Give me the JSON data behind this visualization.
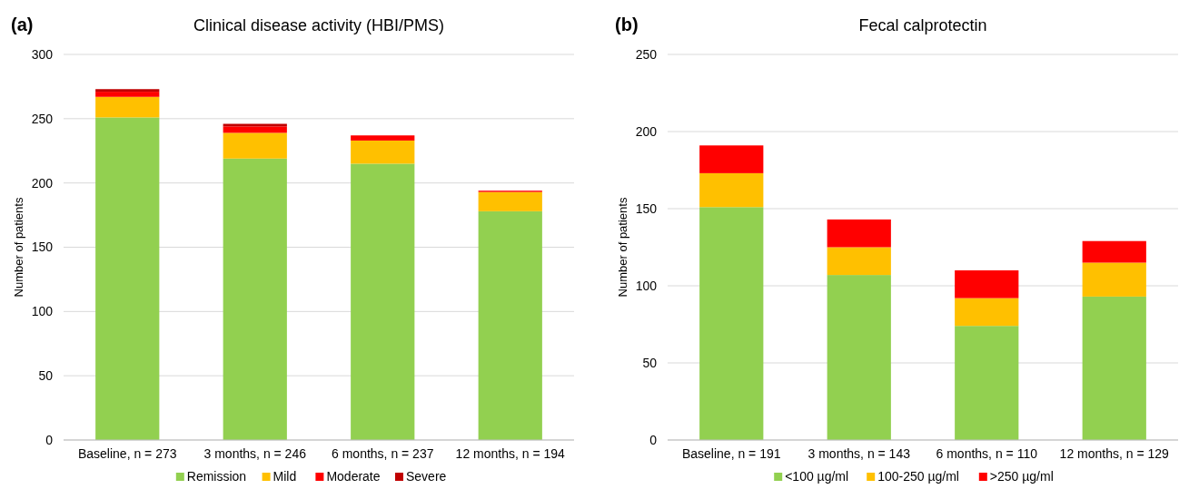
{
  "chart_data": [
    {
      "type": "bar",
      "title": "Clinical disease activity (HBI/PMS)",
      "annotations": [
        "(a)"
      ],
      "ylabel": "Number of patients",
      "categories": [
        "Baseline, n = 273",
        "3 months, n = 246",
        "6 months, n = 237",
        "12 months, n = 194"
      ],
      "stacked": true,
      "ylim": [
        0,
        300
      ],
      "yticks": [
        0,
        50,
        100,
        150,
        200,
        250,
        300
      ],
      "grid": "y",
      "legend": "bottom",
      "series": [
        {
          "name": "Remission",
          "color": "#92d050",
          "values": [
            251,
            219,
            215,
            178
          ]
        },
        {
          "name": "Mild",
          "color": "#ffc000",
          "values": [
            16,
            20,
            18,
            15
          ]
        },
        {
          "name": "Moderate",
          "color": "#ff0000",
          "values": [
            4,
            5,
            4,
            1
          ]
        },
        {
          "name": "Severe",
          "color": "#c00000",
          "values": [
            2,
            2,
            0,
            0
          ]
        }
      ]
    },
    {
      "type": "bar",
      "title": "Fecal calprotectin",
      "annotations": [
        "(b)"
      ],
      "ylabel": "Number of patients",
      "categories": [
        "Baseline, n = 191",
        "3 months, n = 143",
        "6 months, n = 110",
        "12 months, n = 129"
      ],
      "stacked": true,
      "ylim": [
        0,
        250
      ],
      "yticks": [
        0,
        50,
        100,
        150,
        200,
        250
      ],
      "grid": "y",
      "legend": "bottom",
      "series": [
        {
          "name": "<100 µg/ml",
          "color": "#92d050",
          "values": [
            151,
            107,
            74,
            93
          ]
        },
        {
          "name": "100-250 µg/ml",
          "color": "#ffc000",
          "values": [
            22,
            18,
            18,
            22
          ]
        },
        {
          "name": ">250 µg/ml",
          "color": "#ff0000",
          "values": [
            18,
            18,
            18,
            14
          ]
        }
      ]
    }
  ]
}
